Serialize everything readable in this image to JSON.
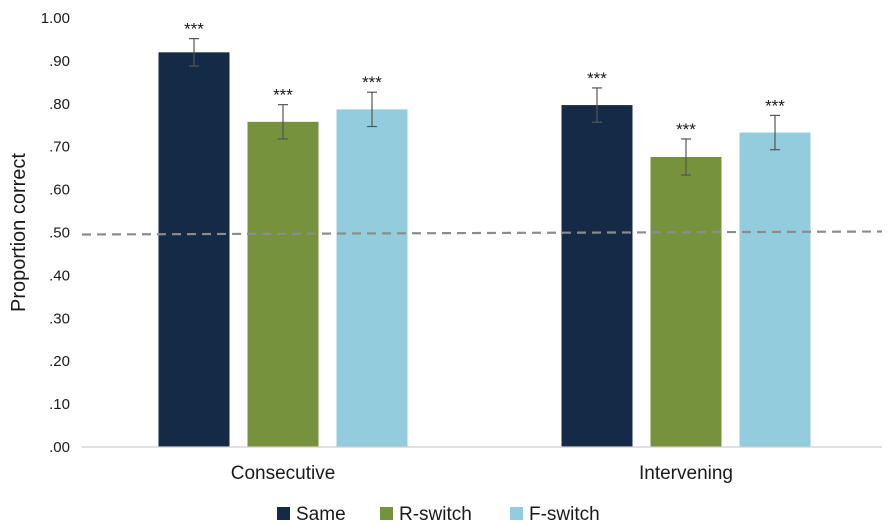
{
  "chart_data": {
    "type": "bar",
    "title": "",
    "xlabel": "",
    "ylabel": "Proportion correct",
    "ylim": [
      0,
      1
    ],
    "yticks": [
      0,
      0.1,
      0.2,
      0.3,
      0.4,
      0.5,
      0.6,
      0.7,
      0.8,
      0.9,
      1.0
    ],
    "ytick_labels": [
      ".00",
      ".10",
      ".20",
      ".30",
      ".40",
      ".50",
      ".60",
      ".70",
      ".80",
      ".90",
      "1.00"
    ],
    "categories": [
      "Consecutive",
      "Intervening"
    ],
    "series": [
      {
        "name": "Same",
        "color": "#142a47",
        "values": [
          0.92,
          0.797
        ],
        "errors": [
          0.032,
          0.04
        ],
        "significance": [
          "***",
          "***"
        ]
      },
      {
        "name": "R-switch",
        "color": "#76923c",
        "values": [
          0.758,
          0.676
        ],
        "errors": [
          0.04,
          0.042
        ],
        "significance": [
          "***",
          "***"
        ]
      },
      {
        "name": "F-switch",
        "color": "#93cddd",
        "values": [
          0.787,
          0.733
        ],
        "errors": [
          0.04,
          0.04
        ],
        "significance": [
          "***",
          "***"
        ]
      }
    ],
    "reference_line": {
      "value": 0.5,
      "style": "dashed",
      "color": "#8c8c8c"
    },
    "grid": false,
    "legend": "bottom"
  }
}
